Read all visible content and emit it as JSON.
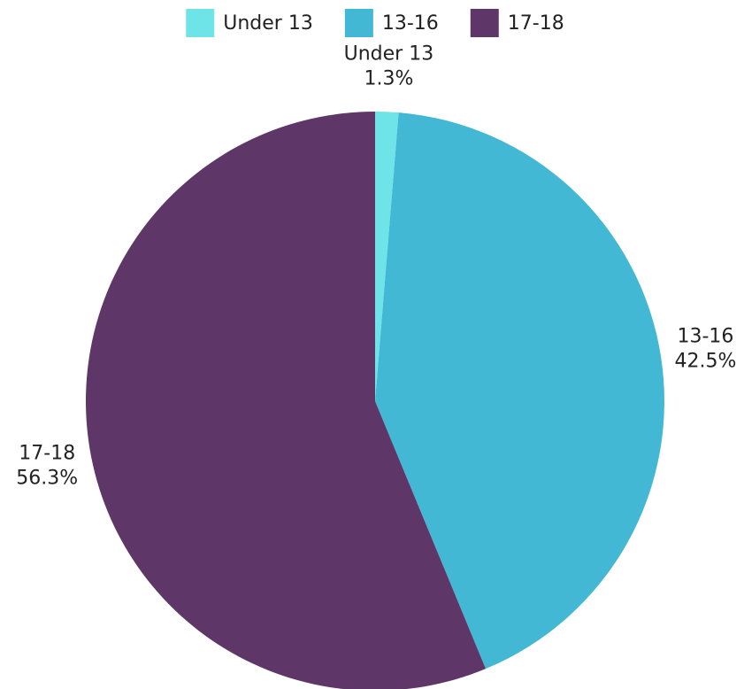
{
  "chart_data": {
    "type": "pie",
    "categories": [
      "Under 13",
      "13-16",
      "17-18"
    ],
    "values": [
      1.3,
      42.5,
      56.3
    ],
    "value_labels": [
      "1.3%",
      "42.5%",
      "56.3%"
    ],
    "colors": [
      "#6ee3e8",
      "#42b8d5",
      "#5e3768"
    ],
    "legend": "top"
  }
}
